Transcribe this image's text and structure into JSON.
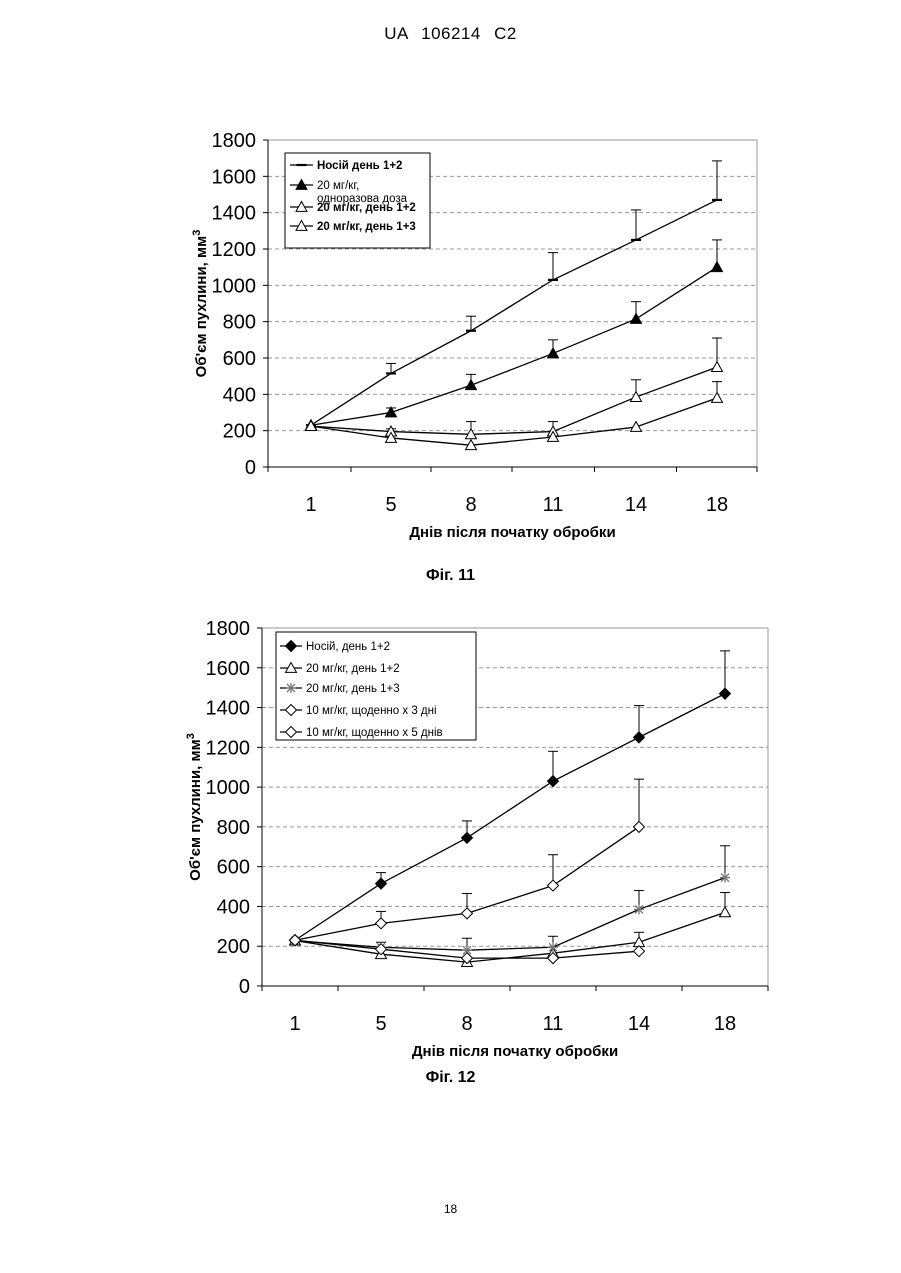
{
  "header": {
    "code": "UA",
    "number": "106214",
    "kind": "C2"
  },
  "page_number": "18",
  "chart_data": [
    {
      "type": "line",
      "caption": "Фіг. 11",
      "ylabel": "Об'єм пухлини, мм",
      "ylabel_sup": "3",
      "xlabel": "Днів після початку обробки",
      "categories": [
        "1",
        "5",
        "8",
        "11",
        "14",
        "18"
      ],
      "ylim": [
        0,
        1800
      ],
      "yticks": [
        0,
        200,
        400,
        600,
        800,
        1000,
        1200,
        1400,
        1600,
        1800
      ],
      "grid": "horizontal dashed",
      "legend_position": "top-left",
      "series": [
        {
          "name": "Носій день 1+2",
          "bold": true,
          "marker": "dash",
          "values": [
            230,
            515,
            750,
            1030,
            1250,
            1470
          ],
          "err": [
            0,
            55,
            80,
            150,
            165,
            215
          ]
        },
        {
          "name": "20 мг/кг,\nодноразова доза",
          "bold": false,
          "marker": "triangle-filled",
          "values": [
            230,
            300,
            450,
            625,
            815,
            1100
          ],
          "err": [
            0,
            25,
            60,
            75,
            95,
            150
          ]
        },
        {
          "name": "20 мг/кг, день 1+2",
          "bold": true,
          "marker": "triangle-open",
          "values": [
            225,
            195,
            180,
            195,
            385,
            550
          ],
          "err": [
            0,
            15,
            70,
            55,
            95,
            160
          ]
        },
        {
          "name": "20 мг/кг, день 1+3",
          "bold": true,
          "marker": "triangle-open",
          "values": [
            225,
            160,
            120,
            165,
            220,
            380
          ],
          "err": [
            0,
            0,
            0,
            0,
            0,
            90
          ]
        }
      ]
    },
    {
      "type": "line",
      "caption": "Фіг. 12",
      "ylabel": "Об'єм пухлини, мм",
      "ylabel_sup": "3",
      "xlabel": "Днів після початку обробки",
      "categories": [
        "1",
        "5",
        "8",
        "11",
        "14",
        "18"
      ],
      "ylim": [
        0,
        1800
      ],
      "yticks": [
        0,
        200,
        400,
        600,
        800,
        1000,
        1200,
        1400,
        1600,
        1800
      ],
      "grid": "horizontal dashed",
      "legend_position": "top-left",
      "series": [
        {
          "name": "Носій, день 1+2",
          "bold": false,
          "marker": "diamond-filled",
          "values": [
            230,
            515,
            745,
            1030,
            1250,
            1470
          ],
          "err": [
            0,
            55,
            85,
            150,
            160,
            215
          ]
        },
        {
          "name": "20 мг/кг, день 1+2",
          "bold": false,
          "marker": "triangle-open",
          "values": [
            228,
            160,
            120,
            165,
            220,
            370
          ],
          "err": [
            0,
            0,
            0,
            0,
            50,
            100
          ]
        },
        {
          "name": "20 мг/кг, день 1+3",
          "bold": false,
          "marker": "asterisk",
          "values": [
            228,
            195,
            180,
            195,
            385,
            545
          ],
          "err": [
            0,
            25,
            60,
            55,
            95,
            160
          ]
        },
        {
          "name": "10 мг/кг, щоденно х 3 дні",
          "bold": false,
          "marker": "diamond-open",
          "values": [
            230,
            315,
            365,
            505,
            800,
            null
          ],
          "err": [
            0,
            60,
            100,
            155,
            240,
            null
          ]
        },
        {
          "name": "10 мг/кг, щоденно х 5 днів",
          "bold": false,
          "marker": "diamond-open",
          "values": [
            230,
            185,
            140,
            140,
            175,
            null
          ],
          "err": [
            0,
            0,
            0,
            0,
            0,
            null
          ]
        }
      ]
    }
  ]
}
